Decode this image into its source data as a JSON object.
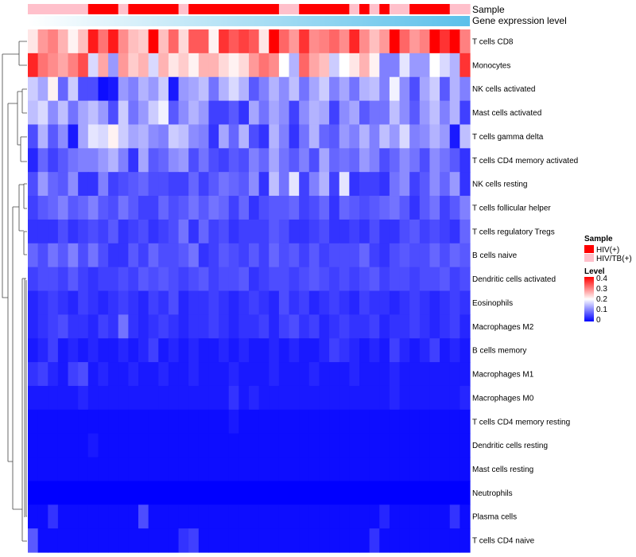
{
  "chart_data": {
    "type": "heatmap",
    "title": "",
    "annotation_labels": {
      "sample": "Sample",
      "gene": "Gene expression level"
    },
    "rows": [
      "T cells CD8",
      "Monocytes",
      "NK cells activated",
      "Mast cells activated",
      "T cells gamma delta",
      "T cells CD4 memory activated",
      "NK cells resting",
      "T cells follicular helper",
      "T cells regulatory  Tregs",
      "B cells naive",
      "Dendritic cells activated",
      "Eosinophils",
      "Macrophages M2",
      "B cells memory",
      "Macrophages M1",
      "Macrophages M0",
      "T cells CD4 memory resting",
      "Dendritic cells resting",
      "Mast cells resting",
      "Neutrophils",
      "Plasma cells",
      "T cells CD4 naive"
    ],
    "columns_count": 44,
    "sample_groups": [
      1,
      1,
      1,
      1,
      1,
      1,
      0,
      0,
      0,
      1,
      0,
      0,
      0,
      0,
      0,
      1,
      0,
      0,
      0,
      0,
      0,
      0,
      0,
      0,
      0,
      1,
      1,
      0,
      0,
      0,
      0,
      0,
      1,
      0,
      1,
      0,
      1,
      1,
      0,
      0,
      0,
      0,
      1,
      1
    ],
    "gene_expression_start": 0.05,
    "gene_expression_end": 0.95,
    "color_scale": {
      "min": 0,
      "max": 0.4,
      "colors": [
        "#0000ff",
        "#ffffff",
        "#ff0000"
      ]
    },
    "values": [
      [
        0.22,
        0.28,
        0.3,
        0.26,
        0.21,
        0.25,
        0.38,
        0.31,
        0.38,
        0.29,
        0.25,
        0.24,
        0.4,
        0.25,
        0.32,
        0.23,
        0.33,
        0.33,
        0.21,
        0.36,
        0.33,
        0.35,
        0.33,
        0.22,
        0.4,
        0.32,
        0.28,
        0.36,
        0.29,
        0.3,
        0.32,
        0.29,
        0.37,
        0.29,
        0.25,
        0.28,
        0.4,
        0.32,
        0.28,
        0.3,
        0.4,
        0.36,
        0.4,
        0.3
      ],
      [
        0.37,
        0.31,
        0.29,
        0.27,
        0.3,
        0.34,
        0.17,
        0.27,
        0.12,
        0.28,
        0.24,
        0.26,
        0.17,
        0.26,
        0.22,
        0.24,
        0.21,
        0.26,
        0.26,
        0.23,
        0.21,
        0.23,
        0.28,
        0.31,
        0.29,
        0.2,
        0.14,
        0.32,
        0.27,
        0.25,
        0.16,
        0.2,
        0.22,
        0.26,
        0.21,
        0.1,
        0.1,
        0.18,
        0.12,
        0.12,
        0.2,
        0.17,
        0.14,
        0.36
      ],
      [
        0.16,
        0.13,
        0.21,
        0.08,
        0.16,
        0.06,
        0.06,
        0.01,
        0.02,
        0.12,
        0.1,
        0.14,
        0.12,
        0.16,
        0.02,
        0.12,
        0.13,
        0.15,
        0.09,
        0.14,
        0.17,
        0.14,
        0.07,
        0.1,
        0.14,
        0.11,
        0.15,
        0.09,
        0.13,
        0.16,
        0.1,
        0.13,
        0.09,
        0.14,
        0.15,
        0.1,
        0.19,
        0.11,
        0.06,
        0.13,
        0.16,
        0.07,
        0.14,
        0.1
      ],
      [
        0.15,
        0.17,
        0.11,
        0.15,
        0.09,
        0.13,
        0.15,
        0.12,
        0.06,
        0.16,
        0.09,
        0.12,
        0.16,
        0.19,
        0.07,
        0.11,
        0.14,
        0.12,
        0.05,
        0.05,
        0.07,
        0.04,
        0.13,
        0.09,
        0.13,
        0.11,
        0.05,
        0.11,
        0.14,
        0.13,
        0.05,
        0.11,
        0.13,
        0.07,
        0.09,
        0.09,
        0.15,
        0.11,
        0.07,
        0.12,
        0.15,
        0.1,
        0.14,
        0.05
      ],
      [
        0.06,
        0.14,
        0.07,
        0.11,
        0.02,
        0.13,
        0.18,
        0.17,
        0.21,
        0.16,
        0.13,
        0.14,
        0.11,
        0.1,
        0.16,
        0.15,
        0.11,
        0.1,
        0.04,
        0.13,
        0.08,
        0.14,
        0.06,
        0.04,
        0.14,
        0.1,
        0.04,
        0.09,
        0.14,
        0.08,
        0.07,
        0.12,
        0.1,
        0.14,
        0.1,
        0.15,
        0.12,
        0.17,
        0.1,
        0.11,
        0.14,
        0.12,
        0.02,
        0.15
      ],
      [
        0.03,
        0.08,
        0.05,
        0.07,
        0.09,
        0.1,
        0.1,
        0.12,
        0.14,
        0.1,
        0.04,
        0.13,
        0.07,
        0.08,
        0.11,
        0.12,
        0.06,
        0.09,
        0.06,
        0.05,
        0.07,
        0.06,
        0.1,
        0.08,
        0.13,
        0.09,
        0.07,
        0.1,
        0.06,
        0.13,
        0.08,
        0.09,
        0.08,
        0.12,
        0.1,
        0.06,
        0.08,
        0.11,
        0.09,
        0.06,
        0.11,
        0.09,
        0.07,
        0.04
      ],
      [
        0.06,
        0.12,
        0.08,
        0.07,
        0.11,
        0.04,
        0.04,
        0.1,
        0.05,
        0.06,
        0.07,
        0.08,
        0.06,
        0.06,
        0.05,
        0.05,
        0.08,
        0.05,
        0.07,
        0.09,
        0.08,
        0.07,
        0.11,
        0.04,
        0.15,
        0.09,
        0.18,
        0.05,
        0.1,
        0.14,
        0.05,
        0.18,
        0.04,
        0.05,
        0.05,
        0.04,
        0.09,
        0.11,
        0.05,
        0.07,
        0.11,
        0.08,
        0.12,
        0.04
      ],
      [
        0.05,
        0.07,
        0.08,
        0.1,
        0.07,
        0.08,
        0.1,
        0.07,
        0.06,
        0.09,
        0.07,
        0.05,
        0.05,
        0.08,
        0.06,
        0.07,
        0.09,
        0.07,
        0.09,
        0.08,
        0.05,
        0.08,
        0.04,
        0.06,
        0.07,
        0.07,
        0.08,
        0.05,
        0.06,
        0.08,
        0.04,
        0.08,
        0.07,
        0.06,
        0.07,
        0.08,
        0.09,
        0.07,
        0.04,
        0.07,
        0.09,
        0.05,
        0.07,
        0.1
      ],
      [
        0.04,
        0.04,
        0.04,
        0.06,
        0.04,
        0.05,
        0.06,
        0.05,
        0.07,
        0.04,
        0.05,
        0.06,
        0.04,
        0.05,
        0.06,
        0.09,
        0.04,
        0.08,
        0.05,
        0.06,
        0.04,
        0.05,
        0.05,
        0.05,
        0.07,
        0.06,
        0.04,
        0.04,
        0.05,
        0.06,
        0.04,
        0.04,
        0.05,
        0.04,
        0.06,
        0.04,
        0.04,
        0.06,
        0.07,
        0.05,
        0.06,
        0.05,
        0.04,
        0.08
      ],
      [
        0.08,
        0.06,
        0.09,
        0.07,
        0.1,
        0.06,
        0.09,
        0.06,
        0.04,
        0.04,
        0.07,
        0.05,
        0.08,
        0.06,
        0.06,
        0.07,
        0.09,
        0.04,
        0.05,
        0.07,
        0.06,
        0.05,
        0.07,
        0.05,
        0.08,
        0.06,
        0.07,
        0.05,
        0.07,
        0.05,
        0.06,
        0.06,
        0.06,
        0.08,
        0.05,
        0.04,
        0.06,
        0.07,
        0.06,
        0.06,
        0.08,
        0.06,
        0.08,
        0.07
      ],
      [
        0.05,
        0.06,
        0.06,
        0.05,
        0.07,
        0.05,
        0.04,
        0.05,
        0.05,
        0.06,
        0.05,
        0.07,
        0.06,
        0.07,
        0.06,
        0.05,
        0.06,
        0.07,
        0.05,
        0.06,
        0.06,
        0.07,
        0.04,
        0.05,
        0.06,
        0.06,
        0.05,
        0.06,
        0.07,
        0.06,
        0.05,
        0.06,
        0.05,
        0.06,
        0.07,
        0.05,
        0.06,
        0.06,
        0.05,
        0.06,
        0.06,
        0.07,
        0.05,
        0.06
      ],
      [
        0.03,
        0.04,
        0.05,
        0.04,
        0.03,
        0.05,
        0.04,
        0.03,
        0.04,
        0.05,
        0.04,
        0.03,
        0.05,
        0.04,
        0.06,
        0.03,
        0.04,
        0.04,
        0.05,
        0.04,
        0.03,
        0.04,
        0.05,
        0.04,
        0.03,
        0.06,
        0.04,
        0.05,
        0.03,
        0.04,
        0.05,
        0.04,
        0.03,
        0.05,
        0.04,
        0.04,
        0.03,
        0.04,
        0.05,
        0.04,
        0.03,
        0.04,
        0.05,
        0.04
      ],
      [
        0.03,
        0.04,
        0.05,
        0.06,
        0.04,
        0.04,
        0.03,
        0.05,
        0.04,
        0.09,
        0.04,
        0.03,
        0.04,
        0.05,
        0.04,
        0.03,
        0.04,
        0.04,
        0.05,
        0.04,
        0.03,
        0.04,
        0.04,
        0.05,
        0.03,
        0.05,
        0.06,
        0.04,
        0.05,
        0.03,
        0.04,
        0.05,
        0.04,
        0.04,
        0.05,
        0.03,
        0.04,
        0.04,
        0.05,
        0.04,
        0.03,
        0.04,
        0.05,
        0.03
      ],
      [
        0.02,
        0.03,
        0.05,
        0.02,
        0.03,
        0.02,
        0.03,
        0.02,
        0.02,
        0.03,
        0.02,
        0.03,
        0.05,
        0.02,
        0.03,
        0.02,
        0.03,
        0.02,
        0.02,
        0.03,
        0.02,
        0.03,
        0.02,
        0.02,
        0.03,
        0.02,
        0.03,
        0.02,
        0.02,
        0.03,
        0.05,
        0.04,
        0.03,
        0.02,
        0.03,
        0.02,
        0.05,
        0.03,
        0.02,
        0.03,
        0.05,
        0.02,
        0.03,
        0.02
      ],
      [
        0.04,
        0.05,
        0.03,
        0.02,
        0.05,
        0.06,
        0.02,
        0.03,
        0.02,
        0.02,
        0.03,
        0.02,
        0.02,
        0.03,
        0.02,
        0.02,
        0.03,
        0.02,
        0.02,
        0.02,
        0.03,
        0.02,
        0.02,
        0.02,
        0.03,
        0.02,
        0.02,
        0.02,
        0.03,
        0.02,
        0.02,
        0.02,
        0.03,
        0.02,
        0.02,
        0.02,
        0.03,
        0.02,
        0.02,
        0.02,
        0.02,
        0.02,
        0.02,
        0.02
      ],
      [
        0.02,
        0.02,
        0.02,
        0.02,
        0.02,
        0.03,
        0.02,
        0.02,
        0.02,
        0.02,
        0.02,
        0.02,
        0.02,
        0.02,
        0.02,
        0.02,
        0.02,
        0.02,
        0.02,
        0.02,
        0.04,
        0.02,
        0.03,
        0.02,
        0.02,
        0.02,
        0.02,
        0.02,
        0.02,
        0.02,
        0.02,
        0.02,
        0.02,
        0.02,
        0.02,
        0.02,
        0.03,
        0.02,
        0.02,
        0.02,
        0.02,
        0.02,
        0.02,
        0.03
      ],
      [
        0.01,
        0.01,
        0.01,
        0.01,
        0.01,
        0.01,
        0.01,
        0.01,
        0.01,
        0.01,
        0.01,
        0.01,
        0.01,
        0.01,
        0.01,
        0.01,
        0.01,
        0.01,
        0.01,
        0.01,
        0.02,
        0.01,
        0.01,
        0.01,
        0.01,
        0.01,
        0.01,
        0.01,
        0.01,
        0.01,
        0.01,
        0.01,
        0.01,
        0.01,
        0.01,
        0.01,
        0.01,
        0.01,
        0.01,
        0.01,
        0.01,
        0.01,
        0.01,
        0.01
      ],
      [
        0.01,
        0.01,
        0.01,
        0.01,
        0.01,
        0.01,
        0.02,
        0.01,
        0.01,
        0.01,
        0.01,
        0.01,
        0.01,
        0.01,
        0.01,
        0.01,
        0.01,
        0.01,
        0.01,
        0.01,
        0.01,
        0.01,
        0.01,
        0.01,
        0.01,
        0.01,
        0.01,
        0.01,
        0.01,
        0.01,
        0.01,
        0.01,
        0.01,
        0.01,
        0.01,
        0.01,
        0.01,
        0.01,
        0.01,
        0.01,
        0.01,
        0.01,
        0.01,
        0.01
      ],
      [
        0.01,
        0.01,
        0.01,
        0.01,
        0.01,
        0.01,
        0.01,
        0.01,
        0.01,
        0.01,
        0.01,
        0.01,
        0.01,
        0.01,
        0.01,
        0.01,
        0.01,
        0.01,
        0.01,
        0.01,
        0.01,
        0.01,
        0.01,
        0.01,
        0.01,
        0.01,
        0.01,
        0.01,
        0.01,
        0.01,
        0.01,
        0.01,
        0.01,
        0.01,
        0.01,
        0.01,
        0.01,
        0.01,
        0.01,
        0.01,
        0.01,
        0.01,
        0.01,
        0.01
      ],
      [
        0.0,
        0.0,
        0.0,
        0.0,
        0.0,
        0.0,
        0.0,
        0.0,
        0.0,
        0.0,
        0.0,
        0.0,
        0.0,
        0.0,
        0.0,
        0.0,
        0.0,
        0.0,
        0.0,
        0.0,
        0.0,
        0.0,
        0.0,
        0.0,
        0.0,
        0.0,
        0.0,
        0.0,
        0.0,
        0.0,
        0.0,
        0.0,
        0.0,
        0.0,
        0.0,
        0.0,
        0.0,
        0.0,
        0.0,
        0.0,
        0.0,
        0.0,
        0.0,
        0.0
      ],
      [
        0.01,
        0.01,
        0.04,
        0.01,
        0.01,
        0.01,
        0.01,
        0.01,
        0.01,
        0.01,
        0.01,
        0.06,
        0.01,
        0.01,
        0.01,
        0.01,
        0.01,
        0.01,
        0.01,
        0.01,
        0.01,
        0.01,
        0.01,
        0.01,
        0.01,
        0.01,
        0.01,
        0.01,
        0.01,
        0.01,
        0.01,
        0.01,
        0.01,
        0.01,
        0.01,
        0.03,
        0.01,
        0.01,
        0.01,
        0.01,
        0.01,
        0.01,
        0.04,
        0.01
      ],
      [
        0.07,
        0.01,
        0.01,
        0.01,
        0.01,
        0.01,
        0.01,
        0.01,
        0.01,
        0.01,
        0.01,
        0.01,
        0.01,
        0.01,
        0.01,
        0.04,
        0.05,
        0.01,
        0.01,
        0.01,
        0.01,
        0.01,
        0.01,
        0.01,
        0.01,
        0.01,
        0.01,
        0.01,
        0.01,
        0.01,
        0.01,
        0.01,
        0.01,
        0.01,
        0.04,
        0.01,
        0.01,
        0.01,
        0.01,
        0.01,
        0.01,
        0.01,
        0.01,
        0.01
      ]
    ],
    "legends": {
      "sample": {
        "title": "Sample",
        "items": [
          {
            "label": "HIV(+)",
            "color": "#ff0000"
          },
          {
            "label": "HIV/TB(+)",
            "color": "#ffc0cb"
          }
        ]
      },
      "level": {
        "title": "Level",
        "ticks": [
          "0.4",
          "0.3",
          "0.2",
          "0.1",
          "0"
        ]
      }
    }
  }
}
